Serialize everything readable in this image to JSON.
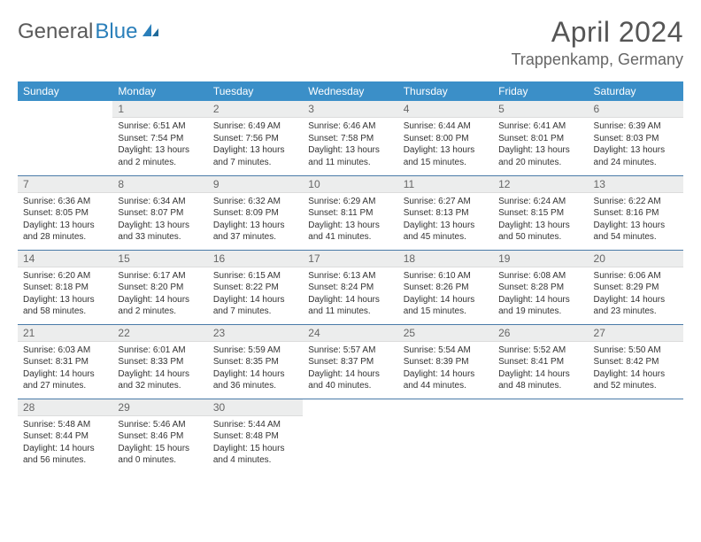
{
  "logo": {
    "text_gray": "General",
    "text_blue": "Blue"
  },
  "title": "April 2024",
  "location": "Trappenkamp, Germany",
  "colors": {
    "header_bg": "#3b8fc8",
    "header_fg": "#ffffff",
    "daynum_bg": "#eceded",
    "row_border": "#4a7ba8"
  },
  "day_names": [
    "Sunday",
    "Monday",
    "Tuesday",
    "Wednesday",
    "Thursday",
    "Friday",
    "Saturday"
  ],
  "weeks": [
    [
      null,
      {
        "n": "1",
        "sr": "Sunrise: 6:51 AM",
        "ss": "Sunset: 7:54 PM",
        "dl1": "Daylight: 13 hours",
        "dl2": "and 2 minutes."
      },
      {
        "n": "2",
        "sr": "Sunrise: 6:49 AM",
        "ss": "Sunset: 7:56 PM",
        "dl1": "Daylight: 13 hours",
        "dl2": "and 7 minutes."
      },
      {
        "n": "3",
        "sr": "Sunrise: 6:46 AM",
        "ss": "Sunset: 7:58 PM",
        "dl1": "Daylight: 13 hours",
        "dl2": "and 11 minutes."
      },
      {
        "n": "4",
        "sr": "Sunrise: 6:44 AM",
        "ss": "Sunset: 8:00 PM",
        "dl1": "Daylight: 13 hours",
        "dl2": "and 15 minutes."
      },
      {
        "n": "5",
        "sr": "Sunrise: 6:41 AM",
        "ss": "Sunset: 8:01 PM",
        "dl1": "Daylight: 13 hours",
        "dl2": "and 20 minutes."
      },
      {
        "n": "6",
        "sr": "Sunrise: 6:39 AM",
        "ss": "Sunset: 8:03 PM",
        "dl1": "Daylight: 13 hours",
        "dl2": "and 24 minutes."
      }
    ],
    [
      {
        "n": "7",
        "sr": "Sunrise: 6:36 AM",
        "ss": "Sunset: 8:05 PM",
        "dl1": "Daylight: 13 hours",
        "dl2": "and 28 minutes."
      },
      {
        "n": "8",
        "sr": "Sunrise: 6:34 AM",
        "ss": "Sunset: 8:07 PM",
        "dl1": "Daylight: 13 hours",
        "dl2": "and 33 minutes."
      },
      {
        "n": "9",
        "sr": "Sunrise: 6:32 AM",
        "ss": "Sunset: 8:09 PM",
        "dl1": "Daylight: 13 hours",
        "dl2": "and 37 minutes."
      },
      {
        "n": "10",
        "sr": "Sunrise: 6:29 AM",
        "ss": "Sunset: 8:11 PM",
        "dl1": "Daylight: 13 hours",
        "dl2": "and 41 minutes."
      },
      {
        "n": "11",
        "sr": "Sunrise: 6:27 AM",
        "ss": "Sunset: 8:13 PM",
        "dl1": "Daylight: 13 hours",
        "dl2": "and 45 minutes."
      },
      {
        "n": "12",
        "sr": "Sunrise: 6:24 AM",
        "ss": "Sunset: 8:15 PM",
        "dl1": "Daylight: 13 hours",
        "dl2": "and 50 minutes."
      },
      {
        "n": "13",
        "sr": "Sunrise: 6:22 AM",
        "ss": "Sunset: 8:16 PM",
        "dl1": "Daylight: 13 hours",
        "dl2": "and 54 minutes."
      }
    ],
    [
      {
        "n": "14",
        "sr": "Sunrise: 6:20 AM",
        "ss": "Sunset: 8:18 PM",
        "dl1": "Daylight: 13 hours",
        "dl2": "and 58 minutes."
      },
      {
        "n": "15",
        "sr": "Sunrise: 6:17 AM",
        "ss": "Sunset: 8:20 PM",
        "dl1": "Daylight: 14 hours",
        "dl2": "and 2 minutes."
      },
      {
        "n": "16",
        "sr": "Sunrise: 6:15 AM",
        "ss": "Sunset: 8:22 PM",
        "dl1": "Daylight: 14 hours",
        "dl2": "and 7 minutes."
      },
      {
        "n": "17",
        "sr": "Sunrise: 6:13 AM",
        "ss": "Sunset: 8:24 PM",
        "dl1": "Daylight: 14 hours",
        "dl2": "and 11 minutes."
      },
      {
        "n": "18",
        "sr": "Sunrise: 6:10 AM",
        "ss": "Sunset: 8:26 PM",
        "dl1": "Daylight: 14 hours",
        "dl2": "and 15 minutes."
      },
      {
        "n": "19",
        "sr": "Sunrise: 6:08 AM",
        "ss": "Sunset: 8:28 PM",
        "dl1": "Daylight: 14 hours",
        "dl2": "and 19 minutes."
      },
      {
        "n": "20",
        "sr": "Sunrise: 6:06 AM",
        "ss": "Sunset: 8:29 PM",
        "dl1": "Daylight: 14 hours",
        "dl2": "and 23 minutes."
      }
    ],
    [
      {
        "n": "21",
        "sr": "Sunrise: 6:03 AM",
        "ss": "Sunset: 8:31 PM",
        "dl1": "Daylight: 14 hours",
        "dl2": "and 27 minutes."
      },
      {
        "n": "22",
        "sr": "Sunrise: 6:01 AM",
        "ss": "Sunset: 8:33 PM",
        "dl1": "Daylight: 14 hours",
        "dl2": "and 32 minutes."
      },
      {
        "n": "23",
        "sr": "Sunrise: 5:59 AM",
        "ss": "Sunset: 8:35 PM",
        "dl1": "Daylight: 14 hours",
        "dl2": "and 36 minutes."
      },
      {
        "n": "24",
        "sr": "Sunrise: 5:57 AM",
        "ss": "Sunset: 8:37 PM",
        "dl1": "Daylight: 14 hours",
        "dl2": "and 40 minutes."
      },
      {
        "n": "25",
        "sr": "Sunrise: 5:54 AM",
        "ss": "Sunset: 8:39 PM",
        "dl1": "Daylight: 14 hours",
        "dl2": "and 44 minutes."
      },
      {
        "n": "26",
        "sr": "Sunrise: 5:52 AM",
        "ss": "Sunset: 8:41 PM",
        "dl1": "Daylight: 14 hours",
        "dl2": "and 48 minutes."
      },
      {
        "n": "27",
        "sr": "Sunrise: 5:50 AM",
        "ss": "Sunset: 8:42 PM",
        "dl1": "Daylight: 14 hours",
        "dl2": "and 52 minutes."
      }
    ],
    [
      {
        "n": "28",
        "sr": "Sunrise: 5:48 AM",
        "ss": "Sunset: 8:44 PM",
        "dl1": "Daylight: 14 hours",
        "dl2": "and 56 minutes."
      },
      {
        "n": "29",
        "sr": "Sunrise: 5:46 AM",
        "ss": "Sunset: 8:46 PM",
        "dl1": "Daylight: 15 hours",
        "dl2": "and 0 minutes."
      },
      {
        "n": "30",
        "sr": "Sunrise: 5:44 AM",
        "ss": "Sunset: 8:48 PM",
        "dl1": "Daylight: 15 hours",
        "dl2": "and 4 minutes."
      },
      null,
      null,
      null,
      null
    ]
  ]
}
